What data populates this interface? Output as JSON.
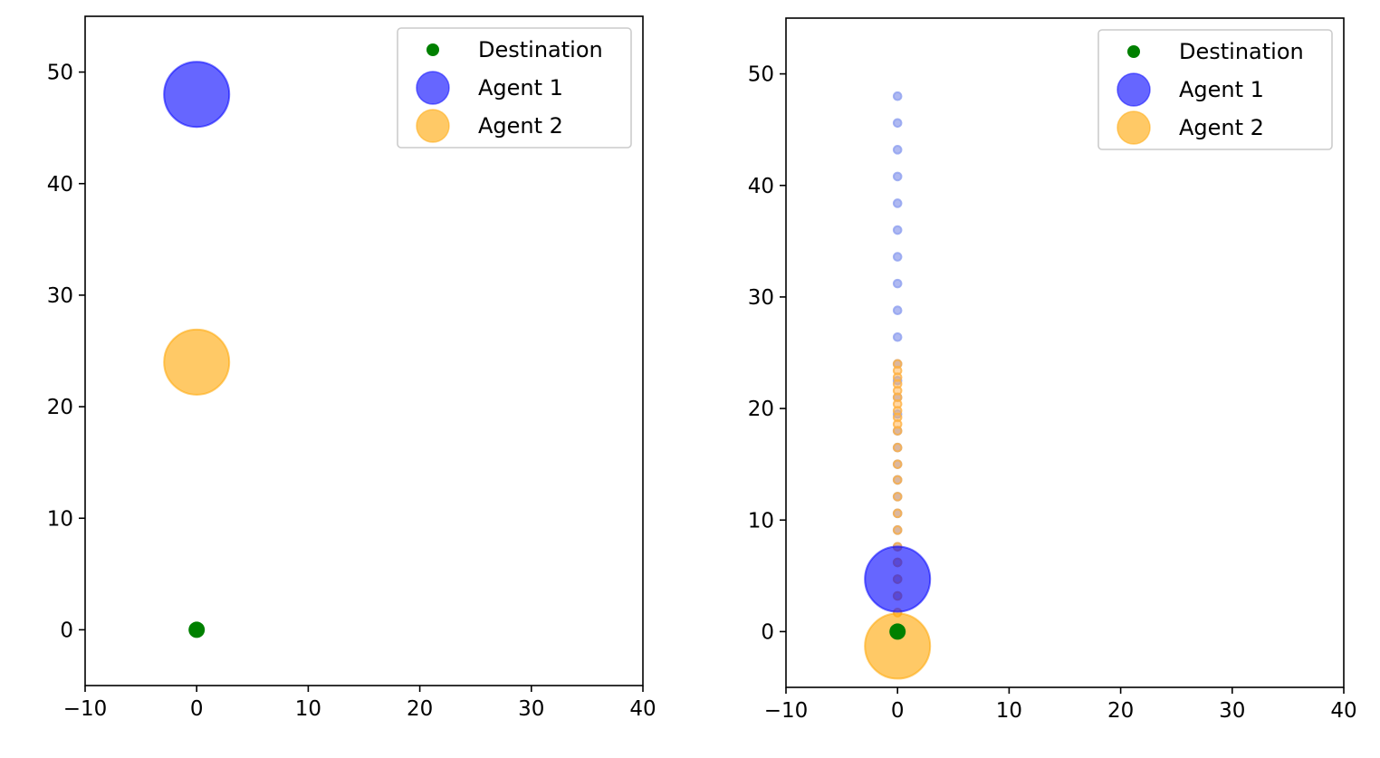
{
  "chart_data": [
    {
      "type": "scatter",
      "title": "",
      "xlabel": "",
      "ylabel": "",
      "xlim": [
        -10,
        40
      ],
      "ylim": [
        -5,
        55
      ],
      "xticks": [
        -10,
        0,
        10,
        20,
        30,
        40
      ],
      "yticks": [
        0,
        10,
        20,
        30,
        40,
        50
      ],
      "legend_position": "top-right",
      "legend": [
        "Destination",
        "Agent 1",
        "Agent 2"
      ],
      "colors": {
        "destination": "#008000",
        "agent1": "#0000ff",
        "agent2": "#ffa500"
      },
      "destination": {
        "x": 0,
        "y": 0
      },
      "agents": [
        {
          "name": "Agent 1",
          "x": 0,
          "y": 48,
          "trail": []
        },
        {
          "name": "Agent 2",
          "x": 0,
          "y": 24,
          "trail": []
        }
      ]
    },
    {
      "type": "scatter",
      "title": "",
      "xlabel": "",
      "ylabel": "",
      "xlim": [
        -10,
        40
      ],
      "ylim": [
        -5,
        55
      ],
      "xticks": [
        -10,
        0,
        10,
        20,
        30,
        40
      ],
      "yticks": [
        0,
        10,
        20,
        30,
        40,
        50
      ],
      "legend_position": "top-right",
      "legend": [
        "Destination",
        "Agent 1",
        "Agent 2"
      ],
      "colors": {
        "destination": "#008000",
        "agent1": "#0000ff",
        "agent2": "#ffa500"
      },
      "destination": {
        "x": 0,
        "y": 0
      },
      "agents": [
        {
          "name": "Agent 1",
          "x": 0,
          "y": 4.7,
          "trail": [
            48,
            45.6,
            43.2,
            40.8,
            38.4,
            36.0,
            33.6,
            31.2,
            28.8,
            26.4,
            24.0,
            22.5,
            21.0,
            19.5,
            18.0,
            16.5,
            15.0,
            13.6,
            12.1,
            10.6,
            9.1,
            7.6,
            6.2,
            4.7,
            3.2
          ]
        },
        {
          "name": "Agent 2",
          "x": 0,
          "y": -1.3,
          "trail": [
            24.0,
            23.4,
            22.8,
            22.2,
            21.6,
            21.0,
            20.4,
            19.8,
            19.2,
            18.6,
            18.0,
            16.5,
            15.0,
            13.6,
            12.1,
            10.6,
            9.1,
            7.6,
            6.2,
            4.7,
            3.2,
            1.7
          ]
        }
      ]
    }
  ]
}
